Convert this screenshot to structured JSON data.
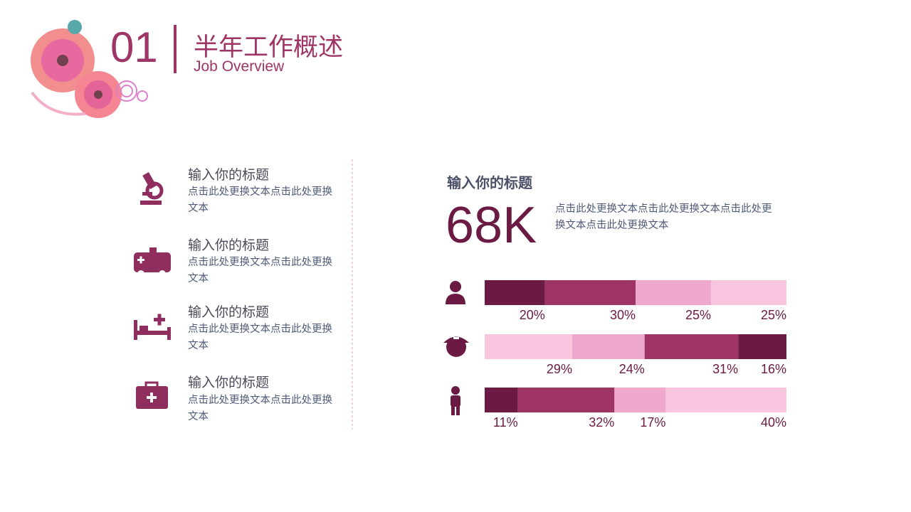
{
  "header": {
    "number": "01",
    "title": "半年工作概述",
    "subtitle": "Job Overview"
  },
  "items": [
    {
      "title": "输入你的标题",
      "text": "点击此处更换文本点击此处更换文本"
    },
    {
      "title": "输入你的标题",
      "text": "点击此处更换文本点击此处更换文本"
    },
    {
      "title": "输入你的标题",
      "text": "点击此处更换文本点击此处更换文本"
    },
    {
      "title": "输入你的标题",
      "text": "点击此处更换文本点击此处更换文本"
    }
  ],
  "highlight": {
    "title": "输入你的标题",
    "figure": "68K",
    "text": "点击此处更换文本点击此处更换文本点击此处更换文本点击此处更换文本"
  },
  "chart_data": {
    "type": "stacked-bar",
    "orientation": "horizontal",
    "rows": [
      {
        "values": [
          20,
          30,
          25,
          25
        ],
        "value_labels": [
          "20%",
          "30%",
          "25%",
          "25%"
        ],
        "colors": [
          "#6b1a43",
          "#9e3566",
          "#efa9cf",
          "#f8c6de"
        ]
      },
      {
        "values": [
          29,
          24,
          31,
          16
        ],
        "value_labels": [
          "29%",
          "24%",
          "31%",
          "16%"
        ],
        "colors": [
          "#f8c6de",
          "#efa9cf",
          "#9e3566",
          "#6b1a43"
        ]
      },
      {
        "values": [
          11,
          32,
          17,
          40
        ],
        "value_labels": [
          "11%",
          "32%",
          "17%",
          "40%"
        ],
        "colors": [
          "#6b1a43",
          "#9e3566",
          "#efa9cf",
          "#f8c6de"
        ]
      }
    ]
  }
}
